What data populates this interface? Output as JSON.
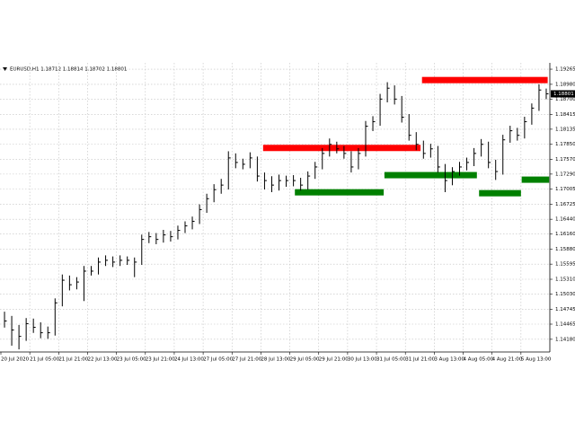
{
  "chart_data": {
    "type": "hlc",
    "title": "EURUSD,H1  1.18712 1.18814 1.18702 1.18801",
    "categories": [
      "20 Jul 2020",
      null,
      null,
      null,
      "21 Jul 05:00",
      null,
      null,
      null,
      "21 Jul 21:00",
      null,
      null,
      null,
      "22 Jul 13:00",
      null,
      null,
      null,
      "23 Jul 05:00",
      null,
      null,
      null,
      "23 Jul 21:00",
      null,
      null,
      null,
      "24 Jul 13:00",
      null,
      null,
      null,
      "27 Jul 05:00",
      null,
      null,
      null,
      "27 Jul 21:00",
      null,
      null,
      null,
      "28 Jul 13:00",
      null,
      null,
      null,
      "29 Jul 05:00",
      null,
      null,
      null,
      "29 Jul 21:00",
      null,
      null,
      null,
      "30 Jul 13:00",
      null,
      null,
      null,
      "31 Jul 05:00",
      null,
      null,
      null,
      "31 Jul 21:00",
      null,
      null,
      null,
      "3 Aug 13:00",
      null,
      null,
      null,
      "4 Aug 05:00",
      null,
      null,
      null,
      "4 Aug 21:00",
      null,
      null,
      null,
      "5 Aug 13:00",
      null,
      null,
      null
    ],
    "color": "#000000",
    "high": [
      1.147,
      1.1462,
      1.1445,
      1.1458,
      1.1457,
      1.145,
      1.1442,
      1.1495,
      1.154,
      1.1538,
      1.1535,
      1.1556,
      1.1556,
      1.1572,
      1.1576,
      1.1574,
      1.1576,
      1.1574,
      1.1572,
      1.1615,
      1.162,
      1.1618,
      1.1624,
      1.1622,
      1.1632,
      1.164,
      1.1649,
      1.1672,
      1.1692,
      1.171,
      1.172,
      1.1772,
      1.1768,
      1.1758,
      1.177,
      1.1762,
      1.1732,
      1.1725,
      1.1728,
      1.1726,
      1.1727,
      1.1722,
      1.1734,
      1.1752,
      1.1778,
      1.1796,
      1.179,
      1.1782,
      1.1772,
      1.1778,
      1.1829,
      1.1838,
      1.188,
      1.1902,
      1.1896,
      1.1876,
      1.1842,
      1.1808,
      1.1792,
      1.1786,
      1.1782,
      1.1748,
      1.1742,
      1.1752,
      1.176,
      1.1778,
      1.1795,
      1.179,
      1.1756,
      1.1803,
      1.182,
      1.1816,
      1.1837,
      1.1862,
      1.1898,
      1.189
    ],
    "low": [
      1.144,
      1.1406,
      1.1399,
      1.1415,
      1.143,
      1.142,
      1.1419,
      1.1425,
      1.148,
      1.151,
      1.1512,
      1.149,
      1.1538,
      1.154,
      1.1556,
      1.1554,
      1.1556,
      1.1558,
      1.1535,
      1.1558,
      1.1599,
      1.1597,
      1.16,
      1.1602,
      1.1606,
      1.1618,
      1.1625,
      1.1635,
      1.1656,
      1.1676,
      1.1692,
      1.17,
      1.174,
      1.1738,
      1.174,
      1.1715,
      1.17,
      1.1695,
      1.1698,
      1.1705,
      1.1706,
      1.1698,
      1.17,
      1.172,
      1.1738,
      1.1762,
      1.1768,
      1.1758,
      1.1732,
      1.1738,
      1.1762,
      1.181,
      1.182,
      1.1864,
      1.186,
      1.1826,
      1.1792,
      1.1774,
      1.1758,
      1.176,
      1.1732,
      1.1695,
      1.1708,
      1.1726,
      1.1736,
      1.1744,
      1.1762,
      1.174,
      1.1718,
      1.1728,
      1.1788,
      1.1792,
      1.1796,
      1.1822,
      1.1848,
      1.187
    ],
    "close": [
      1.14525,
      1.14355,
      1.14235,
      1.14474,
      1.14406,
      1.14303,
      1.14303,
      1.14866,
      1.15292,
      1.15207,
      1.15258,
      1.15463,
      1.15463,
      1.15633,
      1.15667,
      1.15633,
      1.15667,
      1.15667,
      1.15633,
      1.1606,
      1.16111,
      1.1606,
      1.16145,
      1.16111,
      1.1623,
      1.16315,
      1.16401,
      1.16622,
      1.16827,
      1.16997,
      1.17083,
      1.17594,
      1.17509,
      1.17475,
      1.17594,
      1.17253,
      1.17168,
      1.17083,
      1.17168,
      1.17168,
      1.17168,
      1.17083,
      1.17253,
      1.17424,
      1.17679,
      1.1785,
      1.17765,
      1.17679,
      1.17424,
      1.17679,
      1.18191,
      1.18276,
      1.18702,
      1.18907,
      1.18702,
      1.18361,
      1.1802,
      1.1785,
      1.17679,
      1.17765,
      1.17424,
      1.17168,
      1.17338,
      1.17424,
      1.17509,
      1.17679,
      1.1785,
      1.17509,
      1.17338,
      1.17935,
      1.18106,
      1.1802,
      1.18276,
      1.18532,
      1.18873,
      1.18801
    ],
    "zones": [
      {
        "start": 36.3,
        "end": 58.1,
        "value": 1.17782,
        "color": "#ff0000"
      },
      {
        "start": 58.3,
        "end": 75.7,
        "value": 1.1906,
        "color": "#ff0000"
      },
      {
        "start": 40.7,
        "end": 53.0,
        "value": 1.16947,
        "color": "#008000"
      },
      {
        "start": 53.1,
        "end": 65.9,
        "value": 1.1727,
        "color": "#008000"
      },
      {
        "start": 66.2,
        "end": 72.0,
        "value": 1.1693,
        "color": "#008000"
      },
      {
        "start": 72.1,
        "end": 75.9,
        "value": 1.17185,
        "color": "#008000"
      }
    ],
    "current_price": {
      "value": 1.18801,
      "label": "1.18801"
    },
    "ylim": [
      1.13941,
      1.19384
    ],
    "yticks": [
      1.19265,
      {
        "value": 1.1898,
        "label": "1.18980"
      },
      {
        "value": 1.187,
        "label": "1.18700"
      },
      1.18415,
      1.18135,
      {
        "value": 1.1785,
        "label": "1.17850"
      },
      {
        "value": 1.1757,
        "label": "1.17570"
      },
      {
        "value": 1.1729,
        "label": "1.17290"
      },
      1.17005,
      1.16725,
      {
        "value": 1.1644,
        "label": "1.16440"
      },
      {
        "value": 1.1616,
        "label": "1.16160"
      },
      {
        "value": 1.1588,
        "label": "1.15880"
      },
      1.15595,
      {
        "value": 1.1531,
        "label": "1.15310"
      },
      {
        "value": 1.1503,
        "label": "1.15030"
      },
      1.14745,
      1.14465,
      {
        "value": 1.1418,
        "label": "1.14180"
      }
    ],
    "grid": true
  }
}
